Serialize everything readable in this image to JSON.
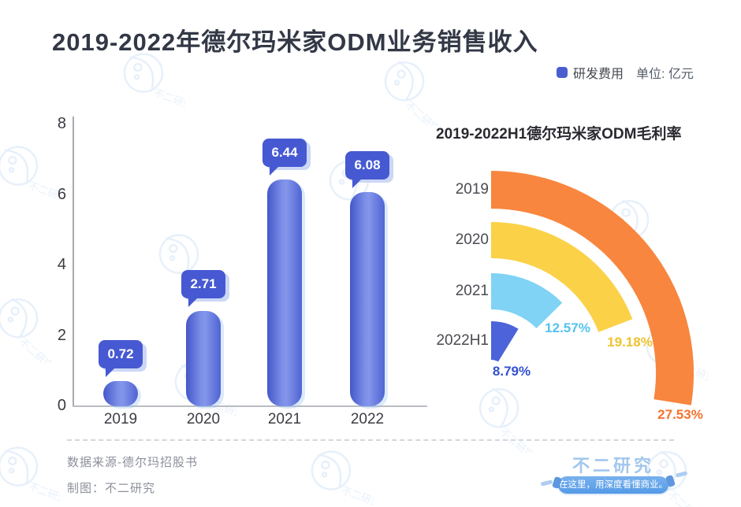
{
  "header": {
    "title": "2019-2022年德尔玛米家ODM业务销售收入",
    "legend_label": "研发费用",
    "unit_label": "单位: 亿元",
    "legend_color": "#4a5ed0"
  },
  "chart_data": [
    {
      "type": "bar",
      "title": "2019-2022年德尔玛米家ODM业务销售收入",
      "series_name": "研发费用",
      "unit": "亿元",
      "categories": [
        "2019",
        "2020",
        "2021",
        "2022"
      ],
      "values": [
        0.72,
        2.71,
        6.44,
        6.08
      ],
      "value_labels": [
        "0.72",
        "2.71",
        "6.44",
        "6.08"
      ],
      "ylim": [
        0,
        8
      ],
      "yticks": [
        0,
        2,
        4,
        6,
        8
      ],
      "grid": "off",
      "bar_color": "#4f63d3",
      "bubble_color": "#4659d2",
      "label_style": "speech-bubble"
    },
    {
      "type": "radial-bar",
      "title": "2019-2022H1德尔玛米家ODM毛利率",
      "categories": [
        "2019",
        "2020",
        "2021",
        "2022H1"
      ],
      "values": [
        27.53,
        19.18,
        12.57,
        8.79
      ],
      "value_labels": [
        "27.53%",
        "19.18%",
        "12.57%",
        "8.79%"
      ],
      "angle_mapping": "percent_of_full_circle_clockwise_from_12oclock",
      "colors": [
        "#f8863e",
        "#fbd148",
        "#80d3f4",
        "#4c63d9"
      ],
      "label_colors": [
        "#f5722e",
        "#eec32f",
        "#53c3ef",
        "#3351cf"
      ]
    }
  ],
  "footer": {
    "source": "数据来源-德尔玛招股书",
    "credit": "制图：不二研究",
    "brand": "不二研究",
    "slogan": "在这里，用深度看懂商业。"
  },
  "watermark_text": "不二研究"
}
